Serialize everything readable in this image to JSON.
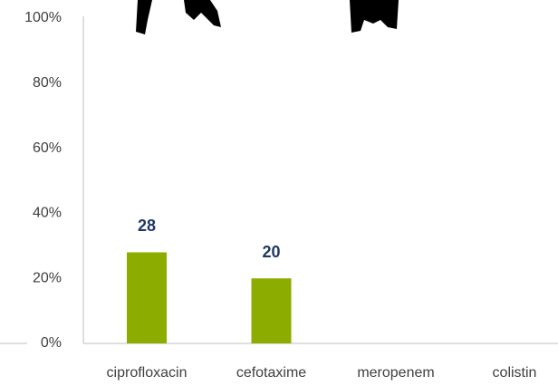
{
  "chart_data": {
    "type": "bar",
    "categories": [
      "ciprofloxacin",
      "cefotaxime",
      "meropenem",
      "colistin"
    ],
    "values": [
      28,
      20,
      null,
      null
    ],
    "color": "#8cad00",
    "label_color": "#1f3864",
    "ylim": [
      0,
      100
    ],
    "yticks": [
      {
        "value": 0,
        "label": "0%"
      },
      {
        "value": 20,
        "label": "20%"
      },
      {
        "value": 40,
        "label": "40%"
      },
      {
        "value": 60,
        "label": "60%"
      },
      {
        "value": 80,
        "label": "80%"
      },
      {
        "value": 100,
        "label": "100%"
      }
    ],
    "grid": false
  }
}
